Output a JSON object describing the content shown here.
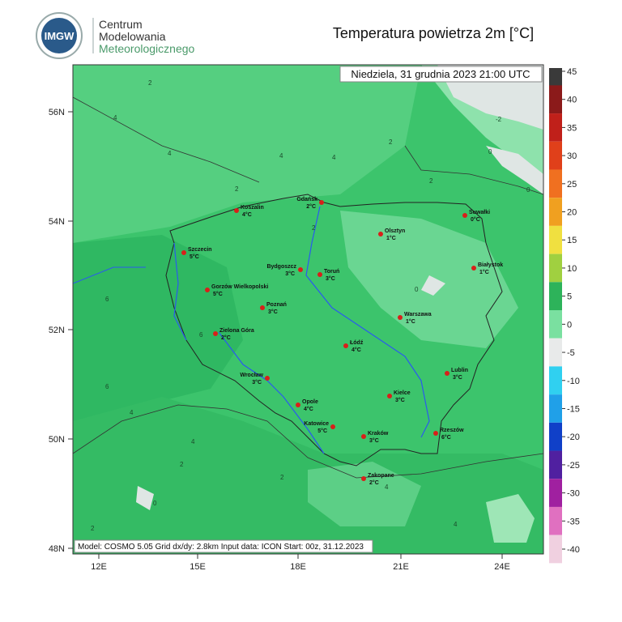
{
  "header": {
    "logo_text": "IMGW",
    "org_line1": "Centrum",
    "org_line2": "Modelowania",
    "org_line3": "Meteorologicznego",
    "title": "Temperatura powietrza 2m [°C]"
  },
  "map": {
    "date_label": "Niedziela, 31 grudnia 2023 21:00 UTC",
    "footer": "Model: COSMO 5.05  Grid dx/dy: 2.8km  Input data: ICON  Start: 00z, 31.12.2023",
    "lon_labels": [
      "12E",
      "15E",
      "18E",
      "21E",
      "24E"
    ],
    "lat_labels": [
      "56N",
      "54N",
      "52N",
      "50N",
      "48N"
    ],
    "cities": [
      {
        "name": "Koszalin",
        "temp": "4°C"
      },
      {
        "name": "Gdańsk",
        "temp": "2°C"
      },
      {
        "name": "Suwałki",
        "temp": "0°C"
      },
      {
        "name": "Olsztyn",
        "temp": "1°C"
      },
      {
        "name": "Szczecin",
        "temp": "5°C"
      },
      {
        "name": "Bydgoszcz",
        "temp": "3°C"
      },
      {
        "name": "Toruń",
        "temp": "3°C"
      },
      {
        "name": "Białystok",
        "temp": "1°C"
      },
      {
        "name": "Gorzów Wielkopolski",
        "temp": "5°C"
      },
      {
        "name": "Poznań",
        "temp": "3°C"
      },
      {
        "name": "Warszawa",
        "temp": "1°C"
      },
      {
        "name": "Zielona Góra",
        "temp": "2°C"
      },
      {
        "name": "Łódź",
        "temp": "4°C"
      },
      {
        "name": "Lublin",
        "temp": "3°C"
      },
      {
        "name": "Wrocław",
        "temp": "3°C"
      },
      {
        "name": "Kielce",
        "temp": "3°C"
      },
      {
        "name": "Opole",
        "temp": "4°C"
      },
      {
        "name": "Katowice",
        "temp": "5°C"
      },
      {
        "name": "Kraków",
        "temp": "3°C"
      },
      {
        "name": "Rzeszów",
        "temp": "6°C"
      },
      {
        "name": "Zakopane",
        "temp": "2°C"
      }
    ],
    "contour_labels": [
      2,
      4,
      4,
      2,
      6,
      4,
      2,
      -2,
      0,
      0,
      4,
      2,
      2,
      0,
      6,
      6,
      4,
      4,
      2,
      2,
      0,
      4,
      4,
      2
    ]
  },
  "colorbar": {
    "levels": [
      45,
      40,
      35,
      30,
      25,
      20,
      15,
      10,
      5,
      0,
      -5,
      -10,
      -15,
      -20,
      -25,
      -30,
      -35,
      -40
    ],
    "colors": [
      "#3a3a3a",
      "#8b1a1a",
      "#c0201a",
      "#e0401a",
      "#f07020",
      "#f0a020",
      "#f0e040",
      "#a0d040",
      "#2db35a",
      "#7ae0a0",
      "#e8eaea",
      "#30d0f0",
      "#20a0e8",
      "#1040c8",
      "#5020a0",
      "#a020a0",
      "#e070c0",
      "#f0d0e0"
    ]
  }
}
